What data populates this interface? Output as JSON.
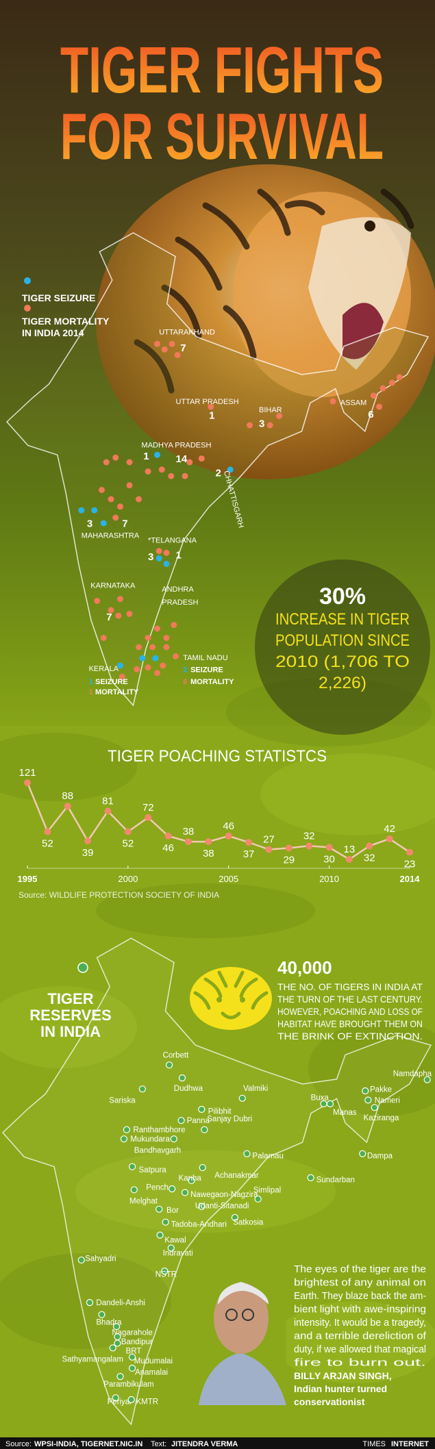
{
  "header": {
    "title_line1": "TIGER FIGHTS",
    "title_line2": "FOR SURVIVAL"
  },
  "legend": {
    "seizure": "TIGER SEIZURE",
    "mortality": [
      "TIGER MORTALITY",
      "IN INDIA 2014"
    ]
  },
  "states": [
    {
      "name": [
        "UTTARAKHAND"
      ],
      "mortality": 7
    },
    {
      "name": [
        "UTTAR PRADESH"
      ],
      "mortality": 1
    },
    {
      "name": [
        "BIHAR"
      ],
      "mortality": 3
    },
    {
      "name": [
        "ASSAM"
      ],
      "mortality": 6
    },
    {
      "name": [
        "MADHYA PRADESH"
      ],
      "seizure": 1,
      "mortality": 14
    },
    {
      "name": [
        "CHHATTISGARH"
      ],
      "seizure": 2
    },
    {
      "name": [
        "MAHARASHTRA"
      ],
      "seizure": 3,
      "mortality": 7
    },
    {
      "name": [
        "*TELANGANA"
      ],
      "seizure": 3,
      "mortality": 1
    },
    {
      "name": [
        "ANDHRA",
        "PRADESH"
      ]
    },
    {
      "name": [
        "KARNATAKA"
      ],
      "mortality": 7
    },
    {
      "name": [
        "TAMIL NADU"
      ],
      "seizure": 2,
      "seizure_text": "SEIZURE",
      "mortality": 6,
      "mortality_text": "MORTALITY"
    },
    {
      "name": [
        "KERALA"
      ],
      "seizure": 1,
      "seizure_text": "SEIZURE",
      "mortality": 1,
      "mortality_text": "MORTALITY"
    }
  ],
  "stat": {
    "value": "30%",
    "lines": [
      "INCREASE IN TIGER",
      "POPULATION SINCE",
      "2010 (1,706 TO",
      "2,226)"
    ]
  },
  "chart_data": {
    "type": "line",
    "title": "TIGER POACHING STATISTCS",
    "x": [
      1995,
      1996,
      1997,
      1998,
      1999,
      2000,
      2001,
      2002,
      2003,
      2004,
      2005,
      2006,
      2007,
      2008,
      2009,
      2010,
      2011,
      2012,
      2013,
      2014
    ],
    "values": [
      121,
      52,
      88,
      39,
      81,
      52,
      72,
      46,
      38,
      38,
      46,
      37,
      27,
      29,
      32,
      30,
      13,
      32,
      42,
      23
    ],
    "color": "#f08a6c",
    "line_color": "#f2c9b4",
    "xlim": [
      1995,
      2014
    ],
    "xticks": [
      1995,
      2000,
      2005,
      2010,
      2014
    ],
    "source": "Source: WILDLIFE PROTECTION SOCIETY OF INDIA"
  },
  "reserves": {
    "title": [
      "TIGER",
      "RESERVES",
      "IN INDIA"
    ],
    "count": "40,000",
    "description": [
      "THE NO. OF TIGERS IN INDIA  AT",
      "THE TURN OF THE LAST CENTURY.",
      "HOWEVER, POACHING AND LOSS OF",
      "HABITAT HAVE BROUGHT THEM ON",
      "THE BRINK OF EXTINCTION."
    ],
    "names": [
      "Corbett",
      "Dudhwa",
      "Valmiki",
      "Sariska",
      "Pilibhit",
      "Buxa",
      "Manas",
      "Namdapha",
      "Pakke",
      "Nameri",
      "Kaziranga",
      "Dampa",
      "Ranthambhore",
      "Mukundara",
      "Panna",
      "Sanjay Dubri",
      "Bandhavgarh",
      "Palamau",
      "Satpura",
      "Achanakmar",
      "Sundarban",
      "Pench",
      "Kanha",
      "Melghat",
      "Nawegaon-Nagzira",
      "Simlipal",
      "Udanti-Sitanadi",
      "Bor",
      "Tadoba-Andhari",
      "Satkosia",
      "Kawal",
      "Indravati",
      "Sahyadri",
      "NSTR",
      "Dandeli-Anshi",
      "Bhadra",
      "Nagarahole",
      "Bandipur",
      "BRT",
      "Sathyamangalam",
      "Mudumalai",
      "Anamalai",
      "Parambikulam",
      "Periyar",
      "KMTR"
    ]
  },
  "quote": {
    "lines": [
      "The eyes of the tiger are the",
      "brightest of any animal on",
      "Earth. They blaze back the am-",
      "bient light with awe-inspiring",
      "intensity. It would be a tragedy,",
      "and a terrible dereliction of",
      "duty, if we allowed that magical",
      "fire to burn out."
    ],
    "author": "BILLY ARJAN SINGH,",
    "role": [
      "Indian hunter turned",
      "conservationist"
    ]
  },
  "footer": {
    "source_label": "Source:",
    "source": "WPSI-INDIA, TIGERNET.NIC.IN",
    "text_label": "Text:",
    "author": "JITENDRA VERMA",
    "brand_1": "TIMES",
    "brand_2": "INTERNET"
  }
}
